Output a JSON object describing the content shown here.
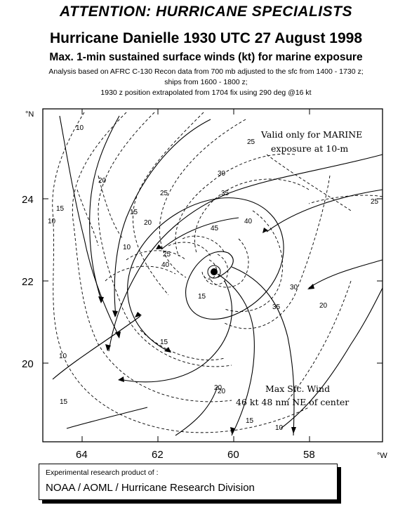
{
  "header": {
    "banner": "ATTENTION: HURRICANE SPECIALISTS",
    "title": "Hurricane Danielle 1930 UTC 27 August 1998",
    "subtitle": "Max. 1-min sustained surface winds (kt) for marine exposure",
    "note_line1": "Analysis based on  AFRC C-130 Recon data from 700 mb adjusted to the sfc from  1400 - 1730 z;",
    "note_line2": "ships from  1600 - 1800 z;",
    "note_line3": "1930 z position extrapolated from  1704 fix using 290 deg @16 kt"
  },
  "map": {
    "lat_unit": "°N",
    "lon_unit": "°W",
    "lat_ticks": [
      "24",
      "22",
      "20"
    ],
    "lon_ticks": [
      "64",
      "62",
      "60",
      "58"
    ],
    "valid_note_line1": "Valid only for MARINE",
    "valid_note_line2": "exposure at 10-m",
    "max_wind_line1": "Max Sfc. Wind",
    "max_wind_line2": "46 kt  48 nm  NE of center",
    "contour_labels": [
      "10",
      "10",
      "10",
      "15",
      "15",
      "15",
      "15",
      "20",
      "20",
      "20",
      "25",
      "25",
      "25",
      "30",
      "30",
      "35",
      "35",
      "40",
      "40",
      "45",
      "10",
      "15",
      "10",
      "20",
      "25",
      "20",
      "15"
    ]
  },
  "credit": {
    "line1": "Experimental research product of :",
    "line2": "NOAA / AOML / Hurricane Research Division"
  }
}
